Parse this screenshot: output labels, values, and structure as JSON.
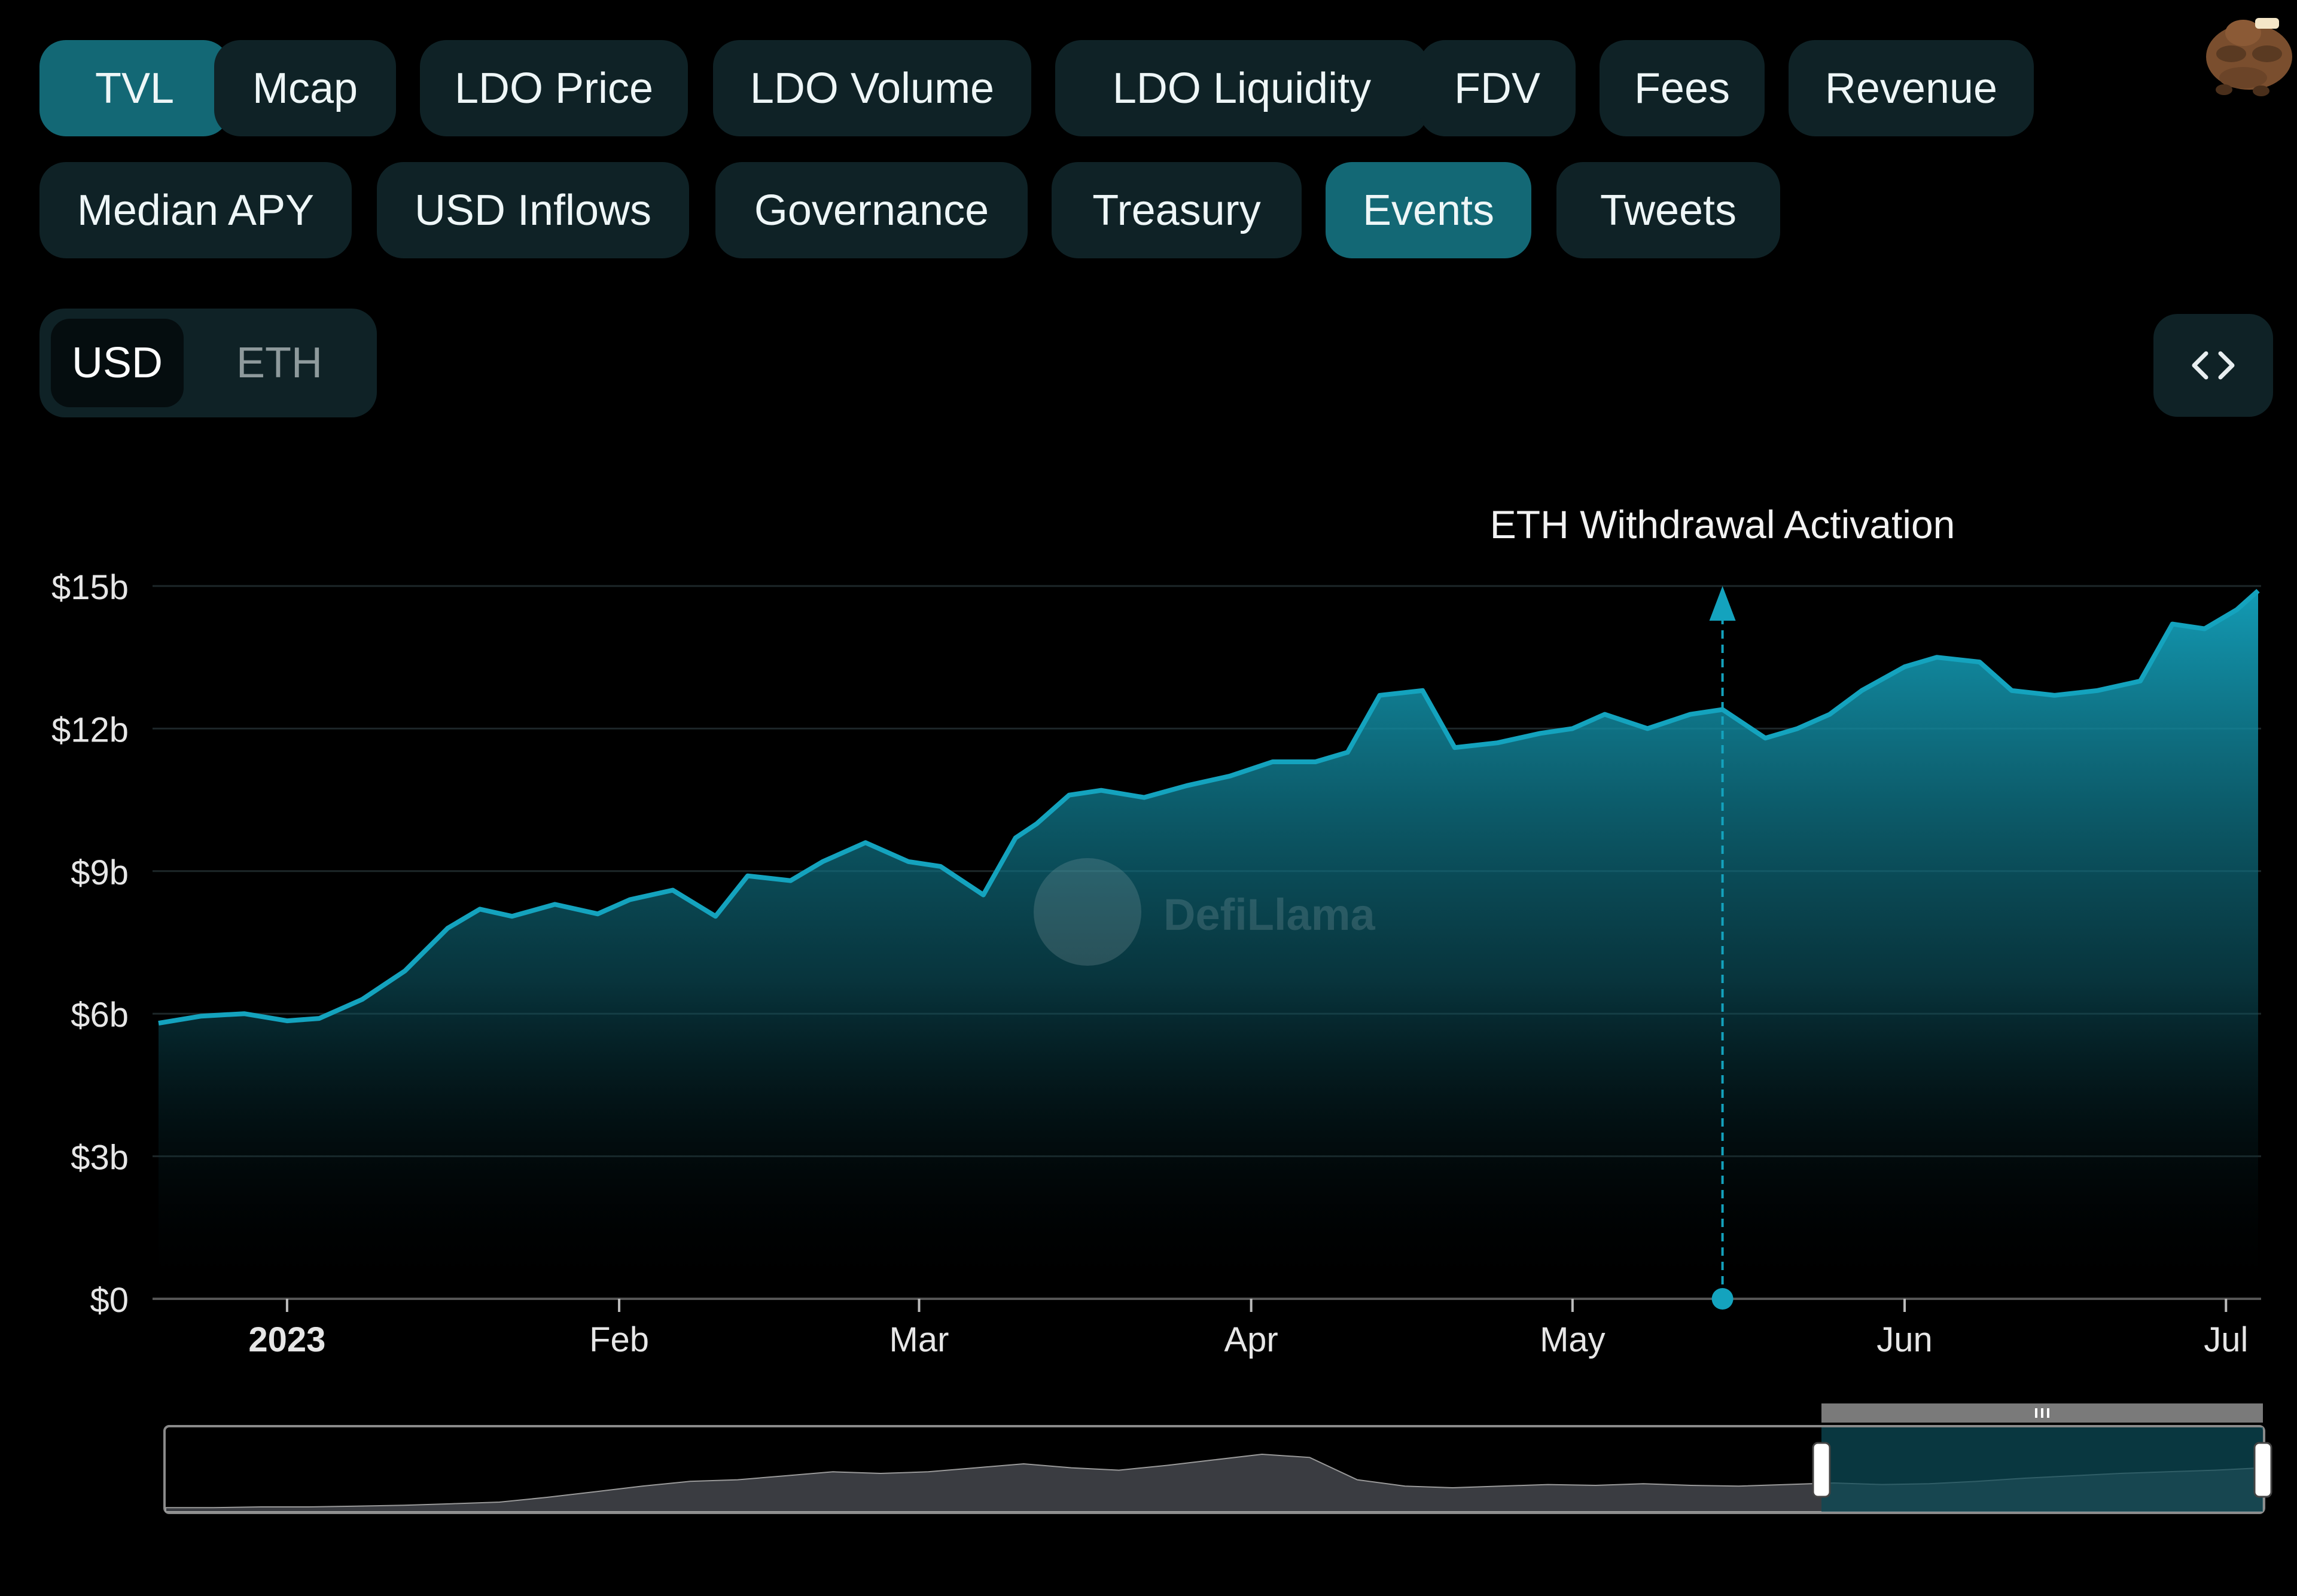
{
  "metric_tabs": [
    {
      "label": "TVL",
      "active": true
    },
    {
      "label": "Mcap",
      "active": false
    },
    {
      "label": "LDO Price",
      "active": false
    },
    {
      "label": "LDO Volume",
      "active": false
    },
    {
      "label": "LDO Liquidity",
      "active": false
    },
    {
      "label": "FDV",
      "active": false
    },
    {
      "label": "Fees",
      "active": false
    },
    {
      "label": "Revenue",
      "active": false
    },
    {
      "label": "Median APY",
      "active": false
    },
    {
      "label": "USD Inflows",
      "active": false
    },
    {
      "label": "Governance",
      "active": false
    },
    {
      "label": "Treasury",
      "active": false
    },
    {
      "label": "Events",
      "active": true
    },
    {
      "label": "Tweets",
      "active": false
    }
  ],
  "denomination": {
    "options": [
      "USD",
      "ETH"
    ],
    "selected": "USD"
  },
  "embed_icon": "code-brackets-icon",
  "avatar_icon": "llama-avatar-icon",
  "watermark": "DefiLlama",
  "colors": {
    "accent": "#14a3be",
    "active_tab": "#136875",
    "tab_bg": "#0f2226",
    "background": "#000000"
  },
  "chart_data": {
    "type": "area",
    "series": [
      {
        "name": "",
        "x": [
          "2022-12-20",
          "2022-12-24",
          "2022-12-28",
          "2023-01-01",
          "2023-01-04",
          "2023-01-08",
          "2023-01-12",
          "2023-01-16",
          "2023-01-19",
          "2023-01-22",
          "2023-01-26",
          "2023-01-30",
          "2023-02-02",
          "2023-02-06",
          "2023-02-10",
          "2023-02-13",
          "2023-02-17",
          "2023-02-20",
          "2023-02-24",
          "2023-02-28",
          "2023-03-03",
          "2023-03-07",
          "2023-03-10",
          "2023-03-12",
          "2023-03-15",
          "2023-03-18",
          "2023-03-22",
          "2023-03-26",
          "2023-03-30",
          "2023-04-03",
          "2023-04-07",
          "2023-04-10",
          "2023-04-13",
          "2023-04-17",
          "2023-04-20",
          "2023-04-24",
          "2023-04-28",
          "2023-05-01",
          "2023-05-04",
          "2023-05-08",
          "2023-05-12",
          "2023-05-15",
          "2023-05-19",
          "2023-05-22",
          "2023-05-25",
          "2023-05-28",
          "2023-06-01",
          "2023-06-04",
          "2023-06-08",
          "2023-06-11",
          "2023-06-15",
          "2023-06-19",
          "2023-06-23",
          "2023-06-26",
          "2023-06-29",
          "2023-07-02",
          "2023-07-04"
        ],
        "y": [
          5.8,
          5.95,
          6.0,
          5.85,
          5.9,
          6.3,
          6.9,
          7.8,
          8.2,
          8.05,
          8.3,
          8.1,
          8.4,
          8.6,
          8.05,
          8.9,
          8.8,
          9.2,
          9.6,
          9.2,
          9.1,
          8.5,
          9.7,
          10.0,
          10.6,
          10.7,
          10.55,
          10.8,
          11.0,
          11.3,
          11.3,
          11.5,
          12.7,
          12.8,
          11.6,
          11.7,
          11.9,
          12.0,
          12.3,
          12.0,
          12.3,
          12.4,
          11.8,
          12.0,
          12.3,
          12.8,
          13.3,
          13.5,
          13.4,
          12.8,
          12.7,
          12.8,
          13.0,
          14.2,
          14.1,
          14.5,
          14.9
        ]
      }
    ],
    "ylim": [
      0,
      15
    ],
    "y_tick_values": [
      0,
      3,
      6,
      9,
      12,
      15
    ],
    "y_tick_labels": [
      "$0",
      "$3b",
      "$6b",
      "$9b",
      "$12b",
      "$15b"
    ],
    "x_tick_dates": [
      "2023-01-01",
      "2023-02-01",
      "2023-03-01",
      "2023-04-01",
      "2023-05-01",
      "2023-06-01",
      "2023-07-01"
    ],
    "x_tick_labels": [
      "2023",
      "Feb",
      "Mar",
      "Apr",
      "May",
      "Jun",
      "Jul"
    ],
    "xlim": [
      "2022-12-20",
      "2023-07-04"
    ],
    "grid": true,
    "event": {
      "date": "2023-05-15",
      "label": "ETH Withdrawal Activation"
    },
    "brush": {
      "selection": "recent"
    }
  }
}
